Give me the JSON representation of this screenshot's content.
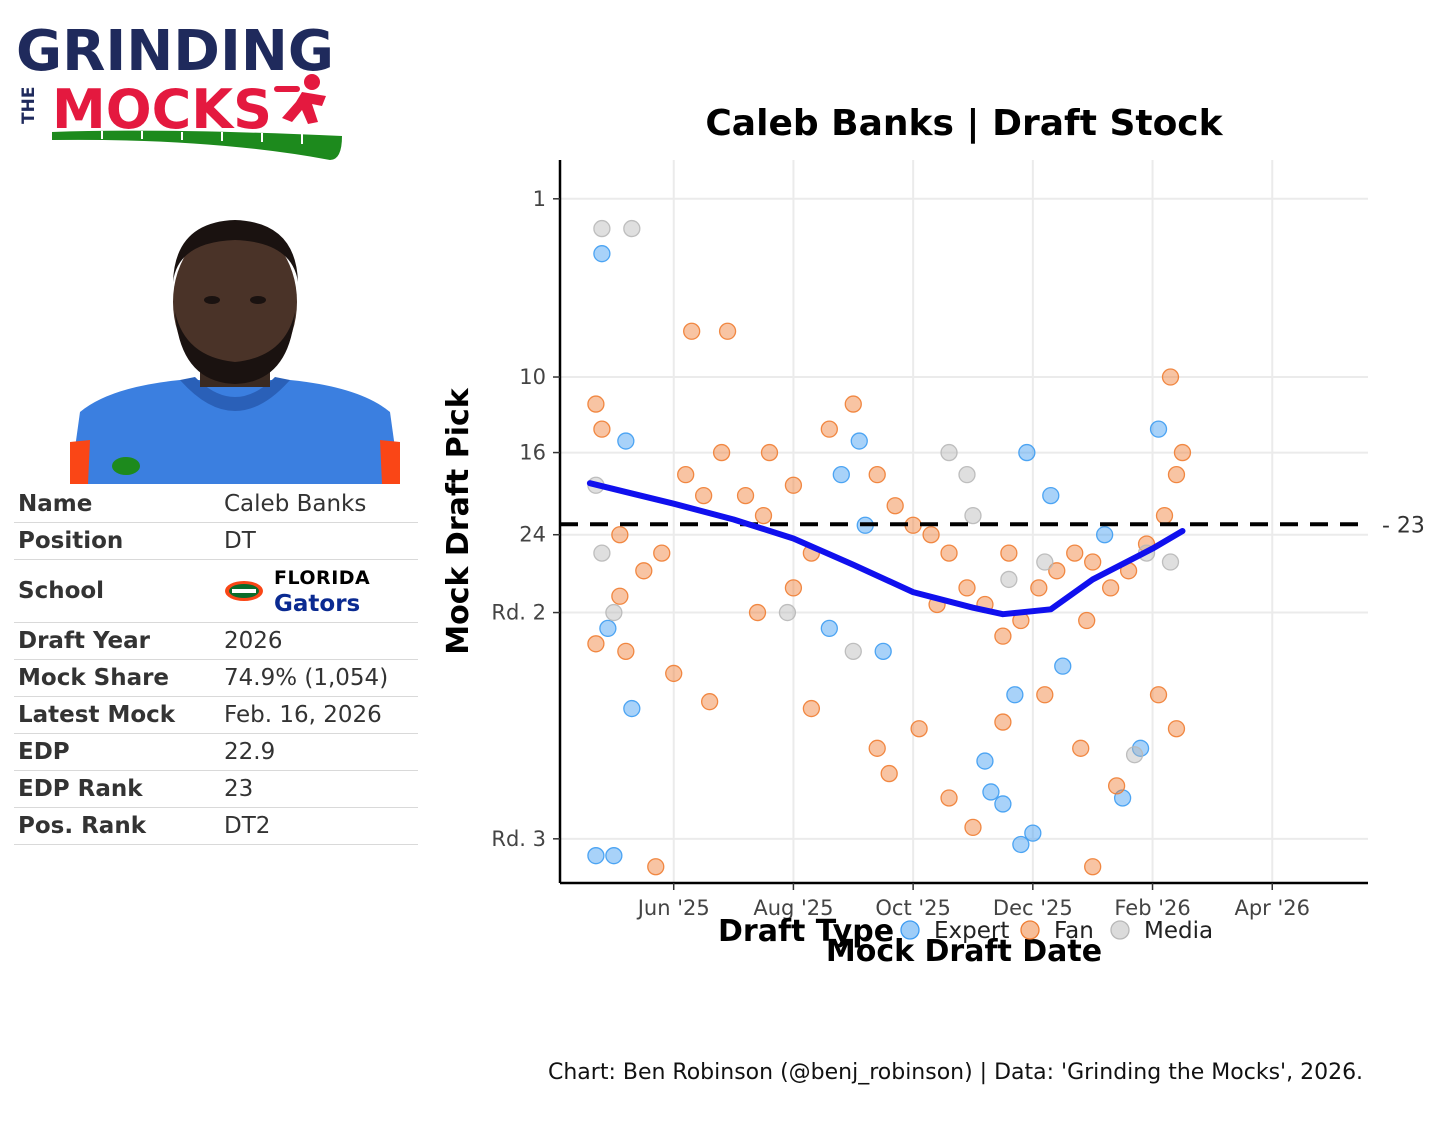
{
  "logo": {
    "line1": "GRINDING",
    "line2_small": "THE",
    "line2": "MOCKS"
  },
  "player": {
    "rows": [
      {
        "label": "Name",
        "value": "Caleb Banks"
      },
      {
        "label": "Position",
        "value": "DT"
      },
      {
        "label": "School",
        "value": ""
      },
      {
        "label": "Draft Year",
        "value": "2026"
      },
      {
        "label": "Mock Share",
        "value": "74.9% (1,054)"
      },
      {
        "label": "Latest Mock",
        "value": "Feb. 16, 2026"
      },
      {
        "label": "EDP",
        "value": "22.9"
      },
      {
        "label": "EDP Rank",
        "value": "23"
      },
      {
        "label": "Pos. Rank",
        "value": "DT2"
      }
    ],
    "school_line1": "Florida",
    "school_line2": "Gators"
  },
  "colors": {
    "expert": "#3d9cf2",
    "fan": "#ef7d32",
    "media": "#b8b8b8",
    "trend": "#1010ee",
    "navy": "#1f2a5c",
    "red": "#e4193f",
    "green": "#1d8a1d",
    "gators_orange": "#fa4616",
    "gators_blue": "#0021a5"
  },
  "caption": "Chart: Ben Robinson (@benj_robinson) | Data: 'Grinding the Mocks', 2026.",
  "chart_data": {
    "type": "scatter",
    "title": "Caleb Banks | Draft Stock",
    "xlabel": "Mock Draft Date",
    "ylabel": "Mock Draft Pick",
    "xlim_months": [
      -0.9,
      12.6
    ],
    "x_origin": "2025-05-01",
    "x_ticks": [
      {
        "label": "Jun '25",
        "v": 1
      },
      {
        "label": "Aug '25",
        "v": 3
      },
      {
        "label": "Oct '25",
        "v": 5
      },
      {
        "label": "Dec '25",
        "v": 7
      },
      {
        "label": "Feb '26",
        "v": 9
      },
      {
        "label": "Apr '26",
        "v": 11
      }
    ],
    "y_scale": "sqrt",
    "ylim": [
      -1,
      75
    ],
    "y_ticks": [
      {
        "label": "1",
        "v": 1
      },
      {
        "label": "10",
        "v": 10
      },
      {
        "label": "16",
        "v": 16
      },
      {
        "label": "24",
        "v": 24
      },
      {
        "label": "Rd. 2",
        "v": 33
      },
      {
        "label": "Rd. 3",
        "v": 67
      }
    ],
    "edp_line": {
      "value": 22.9,
      "label": "23"
    },
    "legend": {
      "title": "Draft Type",
      "items": [
        "Expert",
        "Fan",
        "Media"
      ]
    },
    "series": [
      {
        "name": "Expert",
        "points": [
          [
            -0.2,
            3
          ],
          [
            -0.3,
            70
          ],
          [
            0,
            70
          ],
          [
            0.3,
            46
          ],
          [
            -0.1,
            35
          ],
          [
            0.2,
            15
          ],
          [
            4.2,
            23
          ],
          [
            4.5,
            38
          ],
          [
            6.3,
            59
          ],
          [
            6.5,
            61
          ],
          [
            6.8,
            68
          ],
          [
            7,
            66
          ],
          [
            3.6,
            35
          ],
          [
            3.8,
            18
          ],
          [
            4.1,
            15
          ],
          [
            6.9,
            16
          ],
          [
            7.3,
            20
          ],
          [
            8.5,
            60
          ],
          [
            8.8,
            52
          ],
          [
            9.1,
            14
          ],
          [
            8.2,
            24
          ],
          [
            7.5,
            40
          ],
          [
            6.7,
            44
          ],
          [
            6.2,
            54
          ]
        ]
      },
      {
        "name": "Fan",
        "points": [
          [
            -0.3,
            12
          ],
          [
            -0.2,
            14
          ],
          [
            0.1,
            24
          ],
          [
            0.5,
            28
          ],
          [
            0.8,
            26
          ],
          [
            1.2,
            18
          ],
          [
            1.5,
            20
          ],
          [
            1.8,
            16
          ],
          [
            2.2,
            20
          ],
          [
            2.5,
            22
          ],
          [
            3,
            19
          ],
          [
            3.3,
            26
          ],
          [
            3.6,
            14
          ],
          [
            4,
            12
          ],
          [
            4.4,
            18
          ],
          [
            4.7,
            21
          ],
          [
            5,
            23
          ],
          [
            5.3,
            24
          ],
          [
            5.6,
            26
          ],
          [
            5.9,
            30
          ],
          [
            6.2,
            32
          ],
          [
            6.5,
            36
          ],
          [
            6.8,
            34
          ],
          [
            7.1,
            30
          ],
          [
            7.4,
            28
          ],
          [
            7.7,
            26
          ],
          [
            8,
            27
          ],
          [
            8.3,
            30
          ],
          [
            8.6,
            28
          ],
          [
            8.9,
            25
          ],
          [
            9.2,
            22
          ],
          [
            9.4,
            18
          ],
          [
            9.5,
            16
          ],
          [
            9.3,
            10
          ],
          [
            1.3,
            7
          ],
          [
            1.9,
            7
          ],
          [
            -0.3,
            37
          ],
          [
            0.2,
            38
          ],
          [
            1,
            41
          ],
          [
            1.6,
            45
          ],
          [
            2.4,
            33
          ],
          [
            3.3,
            46
          ],
          [
            4.6,
            56
          ],
          [
            5.1,
            49
          ],
          [
            5.6,
            60
          ],
          [
            6,
            65
          ],
          [
            6.5,
            48
          ],
          [
            7.2,
            44
          ],
          [
            7.8,
            52
          ],
          [
            8.4,
            58
          ],
          [
            9.1,
            44
          ],
          [
            0.7,
            72
          ],
          [
            8,
            72
          ],
          [
            9.4,
            49
          ],
          [
            4.4,
            52
          ],
          [
            3,
            30
          ],
          [
            2.6,
            16
          ],
          [
            0.1,
            31
          ],
          [
            5.4,
            32
          ],
          [
            6.6,
            26
          ],
          [
            7.9,
            34
          ]
        ]
      },
      {
        "name": "Media",
        "points": [
          [
            -0.2,
            2
          ],
          [
            0.3,
            2
          ],
          [
            -0.3,
            19
          ],
          [
            0,
            33
          ],
          [
            -0.2,
            26
          ],
          [
            5.6,
            16
          ],
          [
            6.6,
            29
          ],
          [
            8.9,
            26
          ],
          [
            8.7,
            53
          ],
          [
            4,
            38
          ],
          [
            6,
            22
          ],
          [
            7.2,
            27
          ],
          [
            9.3,
            27
          ],
          [
            2.9,
            33
          ],
          [
            5.9,
            18
          ]
        ]
      }
    ],
    "trend": [
      [
        -0.4,
        18.8
      ],
      [
        1,
        20.8
      ],
      [
        2,
        22.4
      ],
      [
        3,
        24.4
      ],
      [
        4,
        27.3
      ],
      [
        5,
        30.5
      ],
      [
        6,
        32.4
      ],
      [
        6.5,
        33.2
      ],
      [
        7.3,
        32.6
      ],
      [
        8,
        29.0
      ],
      [
        9,
        25.5
      ],
      [
        9.5,
        23.6
      ]
    ]
  }
}
